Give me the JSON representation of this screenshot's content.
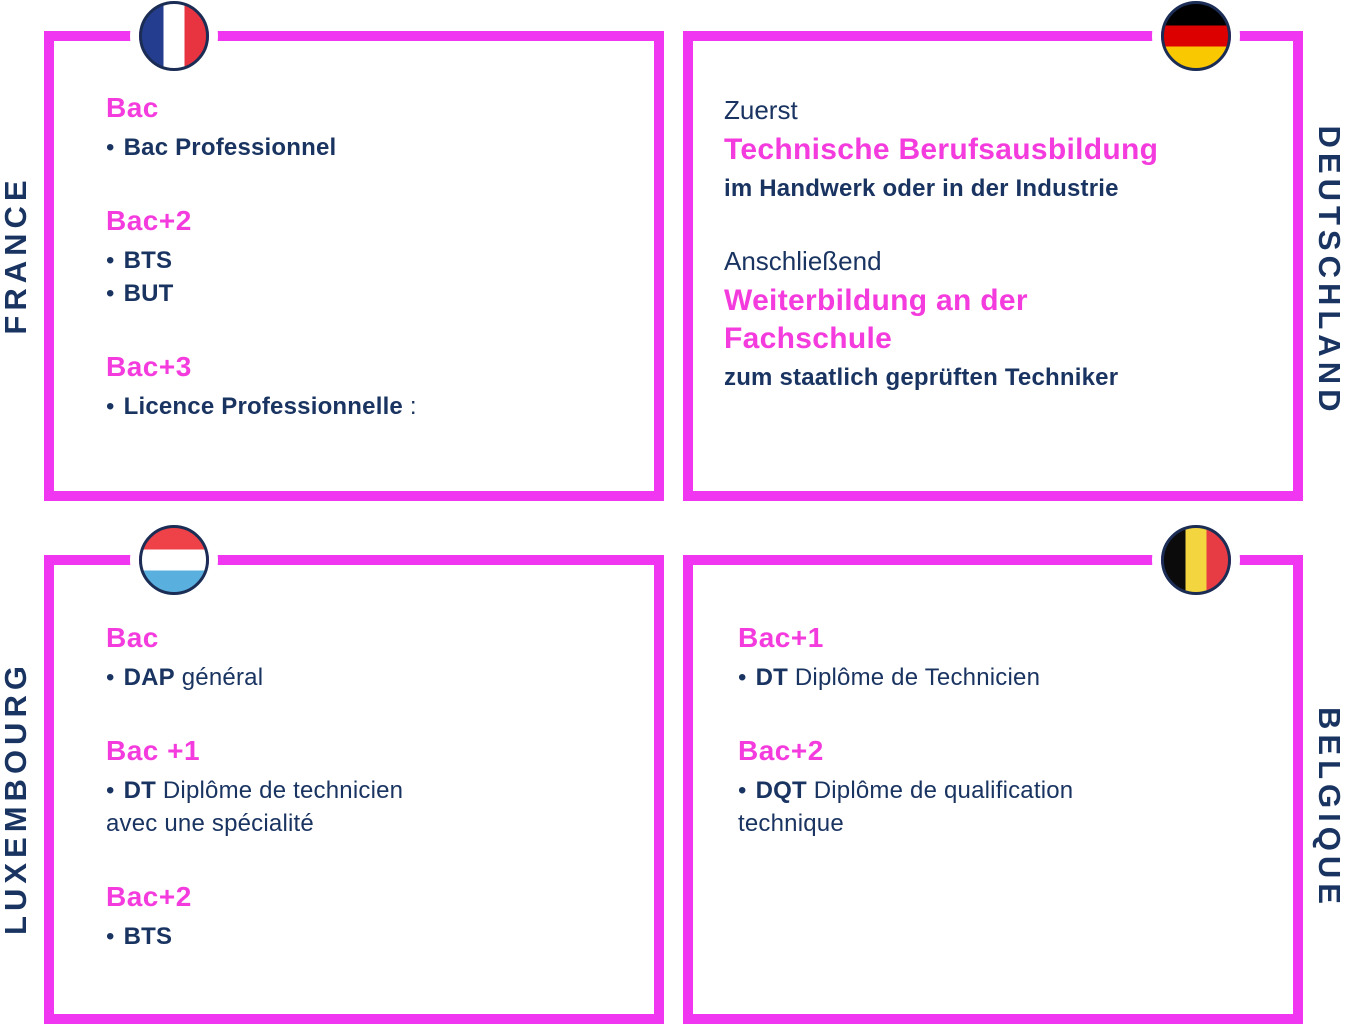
{
  "colors": {
    "border-magenta": "#F136F1",
    "heading-magenta": "#F43BDD",
    "navy": "#1A3462",
    "flag-ring": "#1B2D55",
    "france-blue": "#253D8F",
    "france-red": "#E73440",
    "germany-black": "#000000",
    "germany-red": "#DD0000",
    "germany-gold": "#FAC801",
    "lux-red": "#EE4248",
    "lux-blue": "#59B0DF",
    "belgium-black": "#0B0B0B",
    "belgium-yellow": "#F2D53F",
    "belgium-red": "#E83C45"
  },
  "bullet": "•",
  "quadrants": {
    "france": {
      "country": "FRANCE",
      "flag": "france-flag",
      "groups": [
        {
          "heading": "Bac",
          "items": [
            {
              "bold": "Bac Professionnel",
              "rest": ""
            }
          ]
        },
        {
          "heading": "Bac+2",
          "items": [
            {
              "bold": "BTS",
              "rest": ""
            },
            {
              "bold": "BUT",
              "rest": ""
            }
          ]
        },
        {
          "heading": "Bac+3",
          "items": [
            {
              "bold": "Licence Professionnelle",
              "rest": " :"
            }
          ]
        }
      ]
    },
    "deutschland": {
      "country": "DEUTSCHLAND",
      "flag": "germany-flag",
      "groups": [
        {
          "intro": "Zuerst",
          "title": "Technische Berufsausbildung",
          "subtitle": "im Handwerk oder in der Industrie"
        },
        {
          "intro": "Anschließend",
          "title": "Weiterbildung an der",
          "title2": "Fachschule",
          "subtitle": "zum staatlich geprüften Techniker"
        }
      ]
    },
    "luxembourg": {
      "country": "LUXEMBOURG",
      "flag": "luxembourg-flag",
      "groups": [
        {
          "heading": "Bac",
          "items": [
            {
              "bold": "DAP",
              "rest": " général"
            }
          ]
        },
        {
          "heading": "Bac +1",
          "items": [
            {
              "bold": "DT",
              "rest": " Diplôme de technicien",
              "rest2": "avec une spécialité"
            }
          ]
        },
        {
          "heading": "Bac+2",
          "items": [
            {
              "bold": "BTS",
              "rest": ""
            }
          ]
        }
      ]
    },
    "belgique": {
      "country": "BELGIQUE",
      "flag": "belgium-flag",
      "groups": [
        {
          "heading": "Bac+1",
          "items": [
            {
              "bold": "DT",
              "rest": " Diplôme de Technicien"
            }
          ]
        },
        {
          "heading": "Bac+2",
          "items": [
            {
              "bold": "DQT",
              "rest": " Diplôme de qualification",
              "rest2": "technique"
            }
          ]
        }
      ]
    }
  }
}
